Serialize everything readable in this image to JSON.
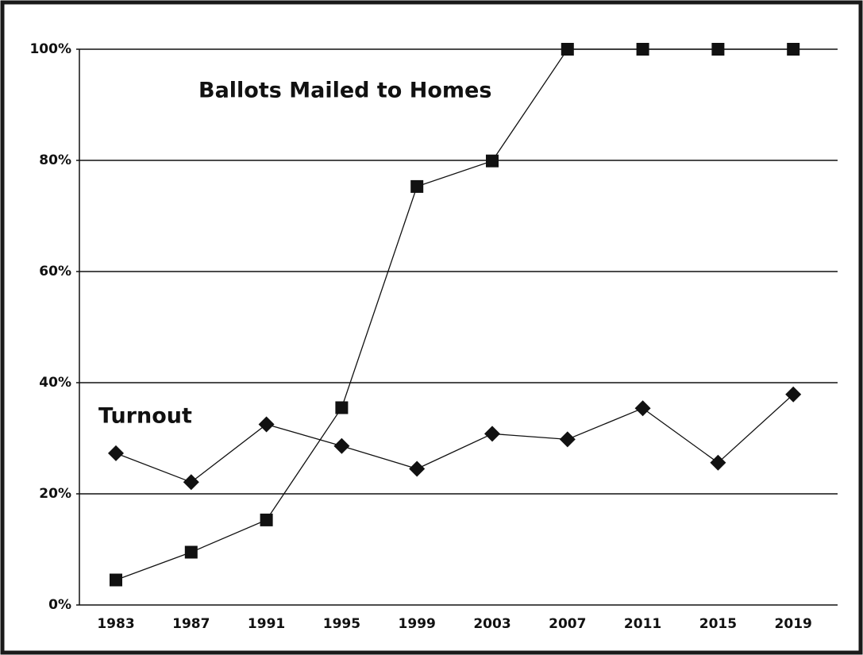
{
  "chart_data": {
    "type": "line",
    "categories": [
      "1983",
      "1987",
      "1991",
      "1995",
      "1999",
      "2003",
      "2007",
      "2011",
      "2015",
      "2019"
    ],
    "series": [
      {
        "name": "Ballots Mailed to Homes",
        "color": "#111111",
        "marker": "square",
        "values": [
          4.5,
          9.5,
          15.3,
          35.5,
          75.3,
          79.9,
          100,
          100,
          100,
          100
        ]
      },
      {
        "name": "Turnout",
        "color": "#111111",
        "marker": "diamond",
        "values": [
          27.3,
          22.1,
          32.5,
          28.6,
          24.5,
          30.8,
          29.8,
          35.4,
          25.6,
          37.9
        ]
      }
    ],
    "ylim": [
      0,
      100
    ],
    "yticks": [
      {
        "value": 0,
        "label": "0%"
      },
      {
        "value": 20,
        "label": "20%"
      },
      {
        "value": 40,
        "label": "40%"
      },
      {
        "value": 60,
        "label": "60%"
      },
      {
        "value": 80,
        "label": "80%"
      },
      {
        "value": 100,
        "label": "100%"
      }
    ],
    "grid": true
  }
}
